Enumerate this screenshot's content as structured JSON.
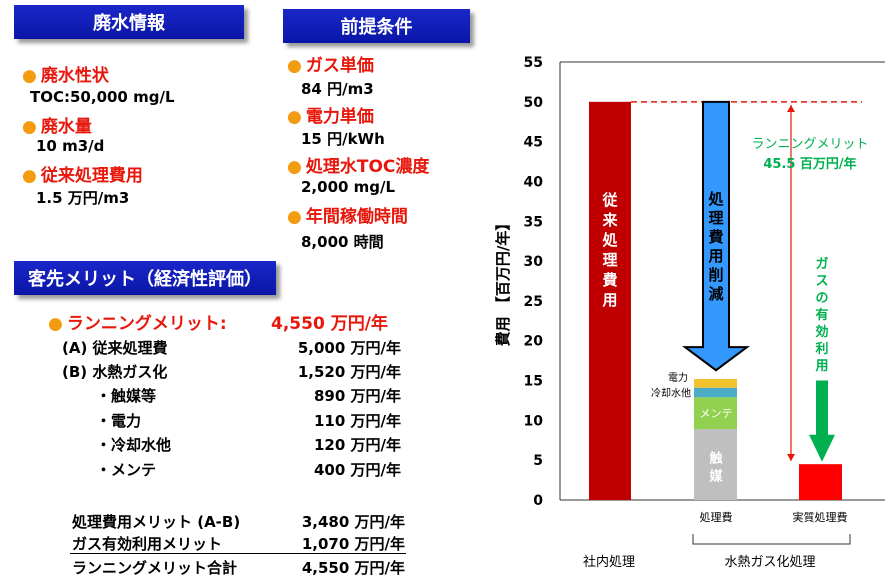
{
  "waste_info": {
    "header": "廃水情報",
    "items": [
      {
        "label": "廃水性状",
        "value": "TOC:50,000 mg/L"
      },
      {
        "label": "廃水量",
        "value": "10 m3/d"
      },
      {
        "label": "従来処理費用",
        "value": "1.5 万円/m3"
      }
    ]
  },
  "premise": {
    "header": "前提条件",
    "items": [
      {
        "label": "ガス単価",
        "value": "84 円/m3"
      },
      {
        "label": "電力単価",
        "value": "15 円/kWh"
      },
      {
        "label": "処理水TOC濃度",
        "value": "2,000 mg/L"
      },
      {
        "label": "年間稼働時間",
        "value": "8,000 時間"
      }
    ]
  },
  "merit": {
    "header": "客先メリット（経済性評価）",
    "running_label": "ランニングメリット:",
    "running_value": "4,550 万円/年",
    "rows": [
      {
        "label": "(A) 従来処理費",
        "value": "5,000 万円/年"
      },
      {
        "label": "(B) 水熱ガス化",
        "value": "1,520 万円/年"
      },
      {
        "label": "・触媒等",
        "value": "890 万円/年"
      },
      {
        "label": "・電力",
        "value": "110 万円/年"
      },
      {
        "label": "・冷却水他",
        "value": "120 万円/年"
      },
      {
        "label": "・メンテ",
        "value": "400 万円/年"
      }
    ],
    "summary": [
      {
        "label": "処理費用メリット (A-B)",
        "value": "3,480 万円/年"
      },
      {
        "label": "ガス有効利用メリット",
        "value": "1,070 万円/年"
      },
      {
        "label": "ランニングメリット合計",
        "value": "4,550 万円/年"
      }
    ]
  },
  "chart_data": {
    "type": "bar",
    "ylabel": "費用 【百万円/年】",
    "ylim": [
      0,
      55
    ],
    "yticks": [
      0,
      5,
      10,
      15,
      20,
      25,
      30,
      35,
      40,
      45,
      50,
      55
    ],
    "bars": [
      {
        "name": "conventional",
        "label": "従来処理費用",
        "value": 50,
        "color": "#c00000"
      },
      {
        "name": "treatment",
        "stack": [
          {
            "label": "触媒",
            "value": 8.9,
            "color": "#bfbfbf"
          },
          {
            "label": "メンテ",
            "value": 4.0,
            "color": "#92d050"
          },
          {
            "label": "冷却水他",
            "value": 1.2,
            "color": "#4bacc6"
          },
          {
            "label": "電力",
            "value": 1.1,
            "color": "#f2c12e"
          }
        ]
      },
      {
        "name": "net",
        "label": "実質処理費",
        "value": 4.5,
        "color": "#ff0000"
      }
    ],
    "x_labels": [
      "処理費",
      "実質処理費"
    ],
    "group_labels": [
      "社内処理",
      "水熱ガス化処理"
    ],
    "arrow_reduction_label": "処理費用削減",
    "arrow_gas_label": "ガスの有効利用",
    "merit_label": "ランニングメリット",
    "merit_value": "45.5 百万円/年",
    "reference_line": 50,
    "colors": {
      "arrow_blue": "#3399ff",
      "arrow_green": "#00b050",
      "dashed": "#e8170c"
    }
  }
}
